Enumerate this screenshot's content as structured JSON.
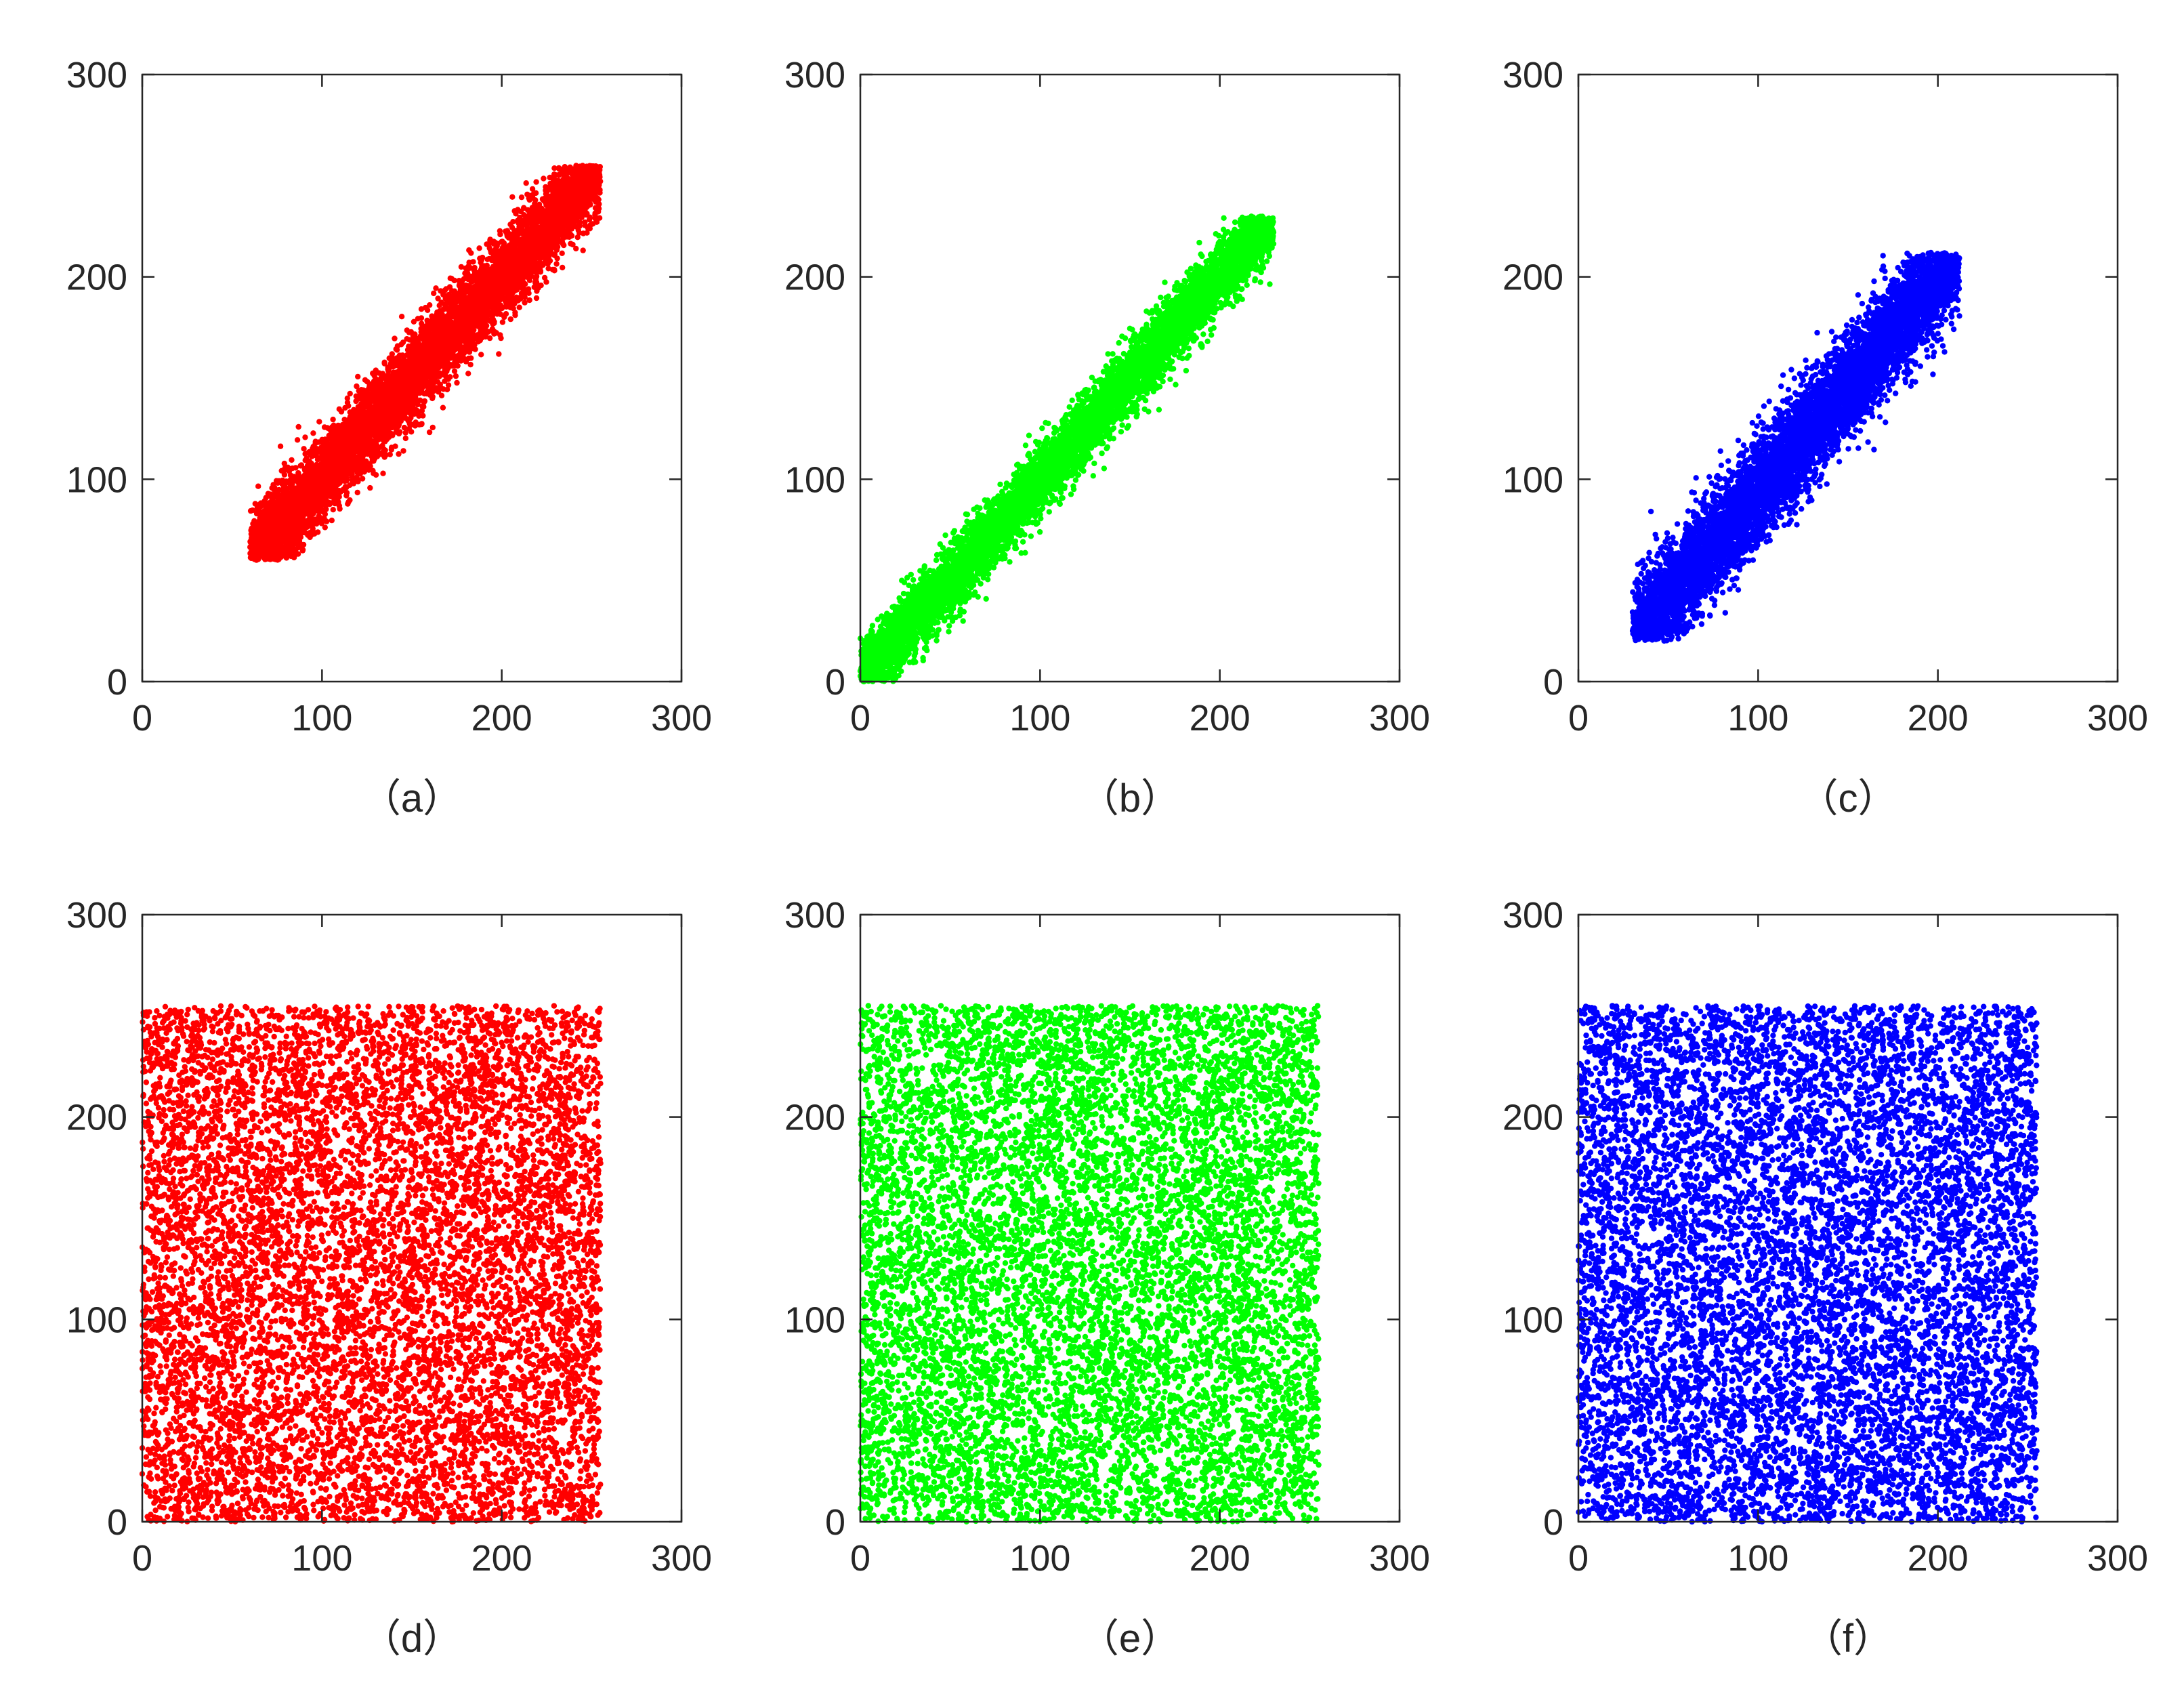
{
  "figure": {
    "panels": [
      "(a)",
      "(b)",
      "(c)",
      "(d)",
      "(e)",
      "(f)"
    ]
  },
  "chart_data": [
    {
      "type": "scatter",
      "caption": "（a）",
      "color": "#ff0000",
      "distribution": "correlated",
      "xlim": [
        0,
        300
      ],
      "ylim": [
        0,
        300
      ],
      "xticks": [
        0,
        100,
        200,
        300
      ],
      "yticks": [
        0,
        100,
        200,
        300
      ],
      "x_range": [
        60,
        255
      ],
      "y_range": [
        60,
        255
      ],
      "correlation": 0.95,
      "point_count": 7000,
      "grid": false,
      "xlabel": "",
      "ylabel": "",
      "title": ""
    },
    {
      "type": "scatter",
      "caption": "（b）",
      "color": "#00ff00",
      "distribution": "correlated",
      "xlim": [
        0,
        300
      ],
      "ylim": [
        0,
        300
      ],
      "xticks": [
        0,
        100,
        200,
        300
      ],
      "yticks": [
        0,
        100,
        200,
        300
      ],
      "x_range": [
        0,
        230
      ],
      "y_range": [
        0,
        230
      ],
      "correlation": 0.96,
      "point_count": 7000,
      "grid": false,
      "xlabel": "",
      "ylabel": "",
      "title": ""
    },
    {
      "type": "scatter",
      "caption": "（c）",
      "color": "#0000ff",
      "distribution": "correlated",
      "xlim": [
        0,
        300
      ],
      "ylim": [
        0,
        300
      ],
      "xticks": [
        0,
        100,
        200,
        300
      ],
      "yticks": [
        0,
        100,
        200,
        300
      ],
      "x_range": [
        30,
        212
      ],
      "y_range": [
        20,
        212
      ],
      "correlation": 0.94,
      "point_count": 7000,
      "grid": false,
      "xlabel": "",
      "ylabel": "",
      "title": ""
    },
    {
      "type": "scatter",
      "caption": "（d）",
      "color": "#ff0000",
      "distribution": "uniform",
      "xlim": [
        0,
        300
      ],
      "ylim": [
        0,
        300
      ],
      "xticks": [
        0,
        100,
        200,
        300
      ],
      "yticks": [
        0,
        100,
        200,
        300
      ],
      "x_range": [
        0,
        255
      ],
      "y_range": [
        0,
        255
      ],
      "correlation": 0,
      "point_count": 9000,
      "grid": false,
      "xlabel": "",
      "ylabel": "",
      "title": ""
    },
    {
      "type": "scatter",
      "caption": "（e）",
      "color": "#00ff00",
      "distribution": "uniform",
      "xlim": [
        0,
        300
      ],
      "ylim": [
        0,
        300
      ],
      "xticks": [
        0,
        100,
        200,
        300
      ],
      "yticks": [
        0,
        100,
        200,
        300
      ],
      "x_range": [
        0,
        255
      ],
      "y_range": [
        0,
        255
      ],
      "correlation": 0,
      "point_count": 9000,
      "grid": false,
      "xlabel": "",
      "ylabel": "",
      "title": ""
    },
    {
      "type": "scatter",
      "caption": "（f）",
      "color": "#0000ff",
      "distribution": "uniform",
      "xlim": [
        0,
        300
      ],
      "ylim": [
        0,
        300
      ],
      "xticks": [
        0,
        100,
        200,
        300
      ],
      "yticks": [
        0,
        100,
        200,
        300
      ],
      "x_range": [
        0,
        255
      ],
      "y_range": [
        0,
        255
      ],
      "correlation": 0,
      "point_count": 9000,
      "grid": false,
      "xlabel": "",
      "ylabel": "",
      "title": ""
    }
  ]
}
